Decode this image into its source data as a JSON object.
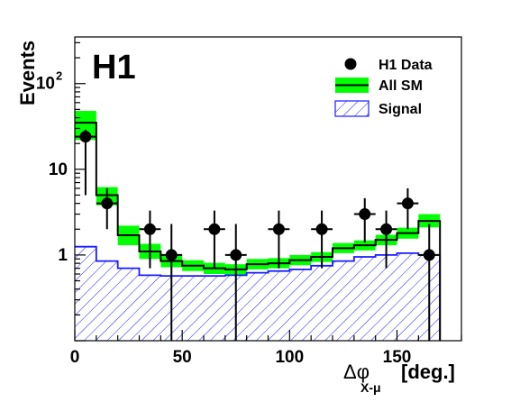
{
  "chart_data": {
    "type": "histogram",
    "experiment_label": "H1",
    "ylabel": "Events",
    "xlabel": {
      "main": "Δφ",
      "subscript": "X-μ",
      "unit": "[deg.]"
    },
    "x_range": [
      0,
      180
    ],
    "y_range": [
      0.1,
      350
    ],
    "y_scale": "log",
    "x_ticks": [
      0,
      50,
      100,
      150
    ],
    "y_ticks": [
      {
        "value": 1,
        "label": "1"
      },
      {
        "value": 10,
        "label": "10"
      },
      {
        "value": 100,
        "label": "10",
        "exponent": "2"
      }
    ],
    "bin_edges": [
      0,
      10,
      20,
      30,
      40,
      50,
      60,
      70,
      80,
      90,
      100,
      110,
      120,
      130,
      140,
      150,
      160,
      170
    ],
    "series": [
      {
        "name": "H1 Data",
        "kind": "points",
        "x": [
          5,
          15,
          35,
          45,
          65,
          75,
          95,
          115,
          135,
          145,
          155,
          165
        ],
        "y": [
          24,
          4,
          2,
          1,
          2,
          1,
          2,
          2,
          3,
          2,
          4,
          1
        ],
        "yerr_low": [
          19,
          2.0,
          1.3,
          1.0,
          1.3,
          1.0,
          1.3,
          1.3,
          1.6,
          1.3,
          2.0,
          1.0
        ],
        "yerr_high": [
          5,
          2.0,
          1.3,
          1.3,
          1.3,
          1.3,
          1.3,
          1.3,
          1.6,
          1.3,
          2.0,
          1.3
        ],
        "color": "#000000"
      },
      {
        "name": "All SM",
        "kind": "step_with_band",
        "values": [
          35,
          5.0,
          1.7,
          1.1,
          0.85,
          0.75,
          0.7,
          0.68,
          0.78,
          0.8,
          0.87,
          0.95,
          1.2,
          1.3,
          1.5,
          1.8,
          2.5
        ],
        "band_low": [
          22,
          3.8,
          1.3,
          0.9,
          0.72,
          0.65,
          0.6,
          0.58,
          0.68,
          0.7,
          0.76,
          0.83,
          1.05,
          1.13,
          1.3,
          1.55,
          2.1
        ],
        "band_high": [
          48,
          6.2,
          2.2,
          1.35,
          1.0,
          0.87,
          0.81,
          0.78,
          0.9,
          0.92,
          1.0,
          1.08,
          1.38,
          1.48,
          1.72,
          2.08,
          3.0
        ],
        "line_color": "#000000",
        "band_color": "#00ff00"
      },
      {
        "name": "Signal",
        "kind": "step_hatched",
        "values": [
          1.25,
          0.85,
          0.7,
          0.58,
          0.57,
          0.57,
          0.57,
          0.58,
          0.62,
          0.65,
          0.68,
          0.75,
          0.85,
          0.95,
          1.0,
          1.05,
          1.0
        ],
        "color": "#1a1aff"
      }
    ],
    "legend": {
      "position": "top-right",
      "entries": [
        "H1 Data",
        "All SM",
        "Signal"
      ]
    }
  }
}
